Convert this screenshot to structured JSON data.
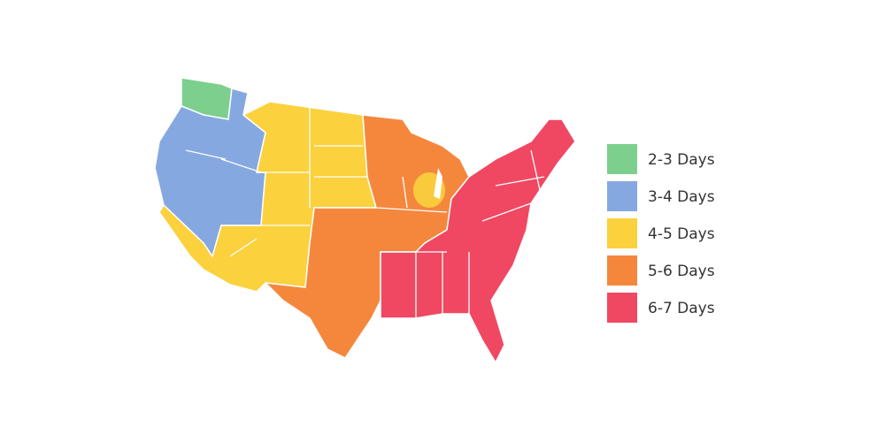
{
  "legend": [
    {
      "label": "2-3 Days",
      "color": "#7dcf8e"
    },
    {
      "label": "3-4 Days",
      "color": "#86a8e0"
    },
    {
      "label": "4-5 Days",
      "color": "#fbd13d"
    },
    {
      "label": "5-6 Days",
      "color": "#f5873d"
    },
    {
      "label": "6-7 Days",
      "color": "#f04862"
    }
  ]
}
